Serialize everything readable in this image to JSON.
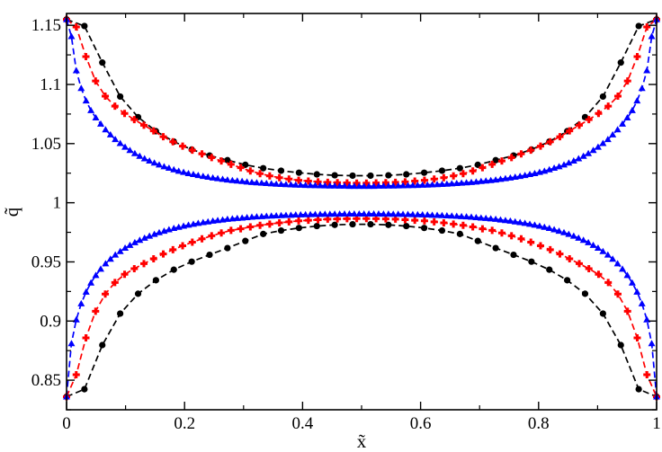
{
  "chart_data": {
    "type": "line",
    "xlabel": "x̃",
    "ylabel": "q̃",
    "xlim": [
      0,
      1
    ],
    "ylim": [
      0.825,
      1.16
    ],
    "grid": false,
    "legend": "none",
    "x_ticks": [
      "0",
      "0.2",
      "0.4",
      "0.6",
      "0.8",
      "1"
    ],
    "y_ticks": [
      "0.85",
      "0.9",
      "0.95",
      "1",
      "1.05",
      "1.1",
      "1.15"
    ],
    "series": [
      {
        "color": "#000000",
        "marker": "circle",
        "line_style": "dashed",
        "x": [
          0.0,
          0.0303,
          0.0606,
          0.0909,
          0.1212,
          0.1515,
          0.1818,
          0.2121,
          0.2424,
          0.2727,
          0.303,
          0.3333,
          0.3636,
          0.3939,
          0.4242,
          0.4545,
          0.4848,
          0.5152,
          0.5455,
          0.5758,
          0.6061,
          0.6364,
          0.6667,
          0.697,
          0.7273,
          0.7576,
          0.7879,
          0.8182,
          0.8485,
          0.8788,
          0.9091,
          0.9394,
          0.9697,
          1.0
        ],
        "upper": [
          1.155,
          1.1494,
          1.1185,
          1.0898,
          1.0724,
          1.0605,
          1.0517,
          1.045,
          1.0399,
          1.036,
          1.0321,
          1.0292,
          1.0271,
          1.0254,
          1.024,
          1.0232,
          1.0229,
          1.0229,
          1.0232,
          1.024,
          1.0254,
          1.0271,
          1.0292,
          1.0321,
          1.036,
          1.0399,
          1.045,
          1.0517,
          1.0605,
          1.0724,
          1.0898,
          1.1185,
          1.1494,
          1.155
        ],
        "lower": [
          0.836,
          0.8424,
          0.8797,
          0.9063,
          0.9231,
          0.9345,
          0.9434,
          0.9502,
          0.956,
          0.9617,
          0.9677,
          0.9736,
          0.9765,
          0.9787,
          0.9803,
          0.9813,
          0.9818,
          0.9818,
          0.9813,
          0.9803,
          0.9787,
          0.9765,
          0.9736,
          0.9677,
          0.9617,
          0.956,
          0.9502,
          0.9434,
          0.9345,
          0.9231,
          0.9063,
          0.8797,
          0.8424,
          0.836
        ]
      },
      {
        "color": "#ff0000",
        "marker": "plus",
        "line_style": "dashed",
        "x": [
          0.0,
          0.0164,
          0.0328,
          0.0492,
          0.0656,
          0.082,
          0.0984,
          0.1148,
          0.1311,
          0.1475,
          0.1639,
          0.1803,
          0.1967,
          0.2131,
          0.2295,
          0.2459,
          0.2623,
          0.2787,
          0.2951,
          0.3115,
          0.3279,
          0.3443,
          0.3607,
          0.377,
          0.3934,
          0.4098,
          0.4262,
          0.4426,
          0.459,
          0.4754,
          0.4918,
          0.5082,
          0.5246,
          0.541,
          0.5574,
          0.5738,
          0.5902,
          0.6066,
          0.623,
          0.6393,
          0.6557,
          0.6721,
          0.6885,
          0.7049,
          0.7213,
          0.7377,
          0.7541,
          0.7705,
          0.7869,
          0.8033,
          0.8197,
          0.8361,
          0.8525,
          0.8689,
          0.8852,
          0.9016,
          0.918,
          0.9344,
          0.9508,
          0.9672,
          0.9836,
          1.0
        ],
        "upper": [
          1.155,
          1.1486,
          1.1235,
          1.1029,
          1.0901,
          1.0817,
          1.0755,
          1.0703,
          1.0655,
          1.0608,
          1.0558,
          1.0516,
          1.0479,
          1.0444,
          1.0413,
          1.0382,
          1.0353,
          1.0325,
          1.0296,
          1.0269,
          1.0246,
          1.0227,
          1.0212,
          1.02,
          1.019,
          1.0183,
          1.0177,
          1.0173,
          1.017,
          1.0168,
          1.0166,
          1.0166,
          1.0168,
          1.017,
          1.0173,
          1.0177,
          1.0183,
          1.019,
          1.02,
          1.0212,
          1.0227,
          1.0246,
          1.0269,
          1.0296,
          1.0325,
          1.0353,
          1.0382,
          1.0413,
          1.0444,
          1.0479,
          1.0516,
          1.0558,
          1.0608,
          1.0655,
          1.0703,
          1.0755,
          1.0817,
          1.0901,
          1.1029,
          1.1235,
          1.1486,
          1.155
        ],
        "lower": [
          0.836,
          0.8546,
          0.8858,
          0.9083,
          0.9228,
          0.9326,
          0.9395,
          0.9443,
          0.9485,
          0.9526,
          0.9567,
          0.9603,
          0.9636,
          0.9667,
          0.9695,
          0.9721,
          0.9745,
          0.9766,
          0.978,
          0.9796,
          0.9809,
          0.982,
          0.983,
          0.9839,
          0.9847,
          0.9852,
          0.9857,
          0.9861,
          0.9863,
          0.9865,
          0.9866,
          0.9866,
          0.9865,
          0.9863,
          0.9861,
          0.9857,
          0.9852,
          0.9847,
          0.9839,
          0.983,
          0.982,
          0.9809,
          0.9796,
          0.978,
          0.9766,
          0.9745,
          0.9721,
          0.9695,
          0.9667,
          0.9636,
          0.9603,
          0.9567,
          0.9526,
          0.9485,
          0.9443,
          0.9395,
          0.9326,
          0.9228,
          0.9083,
          0.8858,
          0.8546,
          0.836
        ]
      },
      {
        "color": "#0000ff",
        "marker": "triangle",
        "line_style": "dashed",
        "x": [
          0.0,
          0.0083,
          0.0165,
          0.0248,
          0.0331,
          0.0413,
          0.0496,
          0.0579,
          0.0661,
          0.0744,
          0.0826,
          0.0909,
          0.0992,
          0.1074,
          0.1157,
          0.124,
          0.1322,
          0.1405,
          0.1488,
          0.157,
          0.1653,
          0.1736,
          0.1818,
          0.1901,
          0.1983,
          0.2066,
          0.2149,
          0.2231,
          0.2314,
          0.2397,
          0.2479,
          0.2562,
          0.2645,
          0.2727,
          0.281,
          0.2893,
          0.2975,
          0.3058,
          0.314,
          0.3223,
          0.3306,
          0.3388,
          0.3471,
          0.3554,
          0.3636,
          0.3719,
          0.3802,
          0.3884,
          0.3967,
          0.405,
          0.4132,
          0.4215,
          0.4298,
          0.438,
          0.4463,
          0.4545,
          0.4628,
          0.4711,
          0.4793,
          0.4876,
          0.4959,
          0.5041,
          0.5124,
          0.5207,
          0.5289,
          0.5372,
          0.5455,
          0.5537,
          0.562,
          0.5702,
          0.5785,
          0.5868,
          0.595,
          0.6033,
          0.6116,
          0.6198,
          0.6281,
          0.6364,
          0.6446,
          0.6529,
          0.6612,
          0.6694,
          0.6777,
          0.686,
          0.6942,
          0.7025,
          0.7107,
          0.719,
          0.7273,
          0.7355,
          0.7438,
          0.7521,
          0.7603,
          0.7686,
          0.7769,
          0.7851,
          0.7934,
          0.8017,
          0.8099,
          0.8182,
          0.8264,
          0.8347,
          0.843,
          0.8512,
          0.8595,
          0.8678,
          0.876,
          0.8843,
          0.8926,
          0.9008,
          0.9091,
          0.9174,
          0.9256,
          0.9339,
          0.9421,
          0.9504,
          0.9587,
          0.9669,
          0.9752,
          0.9835,
          0.9917,
          1.0
        ],
        "upper": [
          1.155,
          1.1406,
          1.1118,
          1.0968,
          1.0862,
          1.0781,
          1.0719,
          1.0667,
          1.0618,
          1.0575,
          1.0536,
          1.0502,
          1.0471,
          1.0443,
          1.0417,
          1.0394,
          1.0373,
          1.0354,
          1.0337,
          1.0321,
          1.0306,
          1.0293,
          1.028,
          1.0268,
          1.0258,
          1.0248,
          1.024,
          1.0232,
          1.0224,
          1.0217,
          1.0211,
          1.0205,
          1.0199,
          1.0194,
          1.0189,
          1.0185,
          1.0181,
          1.0177,
          1.0173,
          1.017,
          1.0167,
          1.0164,
          1.0161,
          1.0159,
          1.0157,
          1.0155,
          1.0153,
          1.0151,
          1.015,
          1.0148,
          1.0147,
          1.0146,
          1.0145,
          1.0144,
          1.0143,
          1.0143,
          1.0142,
          1.0142,
          1.0141,
          1.0141,
          1.0141,
          1.0141,
          1.0141,
          1.0141,
          1.0142,
          1.0142,
          1.0143,
          1.0143,
          1.0144,
          1.0145,
          1.0146,
          1.0147,
          1.0148,
          1.015,
          1.0151,
          1.0153,
          1.0155,
          1.0157,
          1.0159,
          1.0161,
          1.0164,
          1.0167,
          1.017,
          1.0173,
          1.0177,
          1.0181,
          1.0185,
          1.0189,
          1.0194,
          1.0199,
          1.0205,
          1.0211,
          1.0217,
          1.0224,
          1.0232,
          1.024,
          1.0248,
          1.0258,
          1.0268,
          1.028,
          1.0293,
          1.0306,
          1.0321,
          1.0337,
          1.0354,
          1.0373,
          1.0394,
          1.0417,
          1.0443,
          1.0471,
          1.0502,
          1.0536,
          1.0575,
          1.0618,
          1.0667,
          1.0719,
          1.0781,
          1.0862,
          1.0968,
          1.1118,
          1.1406,
          1.155
        ],
        "lower": [
          0.836,
          0.881,
          0.9012,
          0.9147,
          0.9246,
          0.9323,
          0.9387,
          0.944,
          0.9485,
          0.9524,
          0.9559,
          0.9589,
          0.9617,
          0.9641,
          0.9664,
          0.9684,
          0.9702,
          0.9719,
          0.9734,
          0.9748,
          0.9761,
          0.9773,
          0.9784,
          0.9794,
          0.9803,
          0.9812,
          0.982,
          0.9827,
          0.9834,
          0.984,
          0.9846,
          0.9851,
          0.9856,
          0.9861,
          0.9865,
          0.9869,
          0.9872,
          0.9876,
          0.9879,
          0.9882,
          0.9884,
          0.9887,
          0.9889,
          0.9891,
          0.9893,
          0.9895,
          0.9896,
          0.9898,
          0.9899,
          0.99,
          0.9901,
          0.9902,
          0.9903,
          0.9904,
          0.9904,
          0.9905,
          0.9905,
          0.9906,
          0.9906,
          0.9906,
          0.9906,
          0.9906,
          0.9906,
          0.9906,
          0.9906,
          0.9905,
          0.9905,
          0.9904,
          0.9904,
          0.9903,
          0.9902,
          0.9901,
          0.99,
          0.9899,
          0.9898,
          0.9896,
          0.9895,
          0.9893,
          0.9891,
          0.9889,
          0.9887,
          0.9884,
          0.9882,
          0.9879,
          0.9876,
          0.9872,
          0.9869,
          0.9865,
          0.9861,
          0.9856,
          0.9851,
          0.9846,
          0.984,
          0.9834,
          0.9827,
          0.982,
          0.9812,
          0.9803,
          0.9794,
          0.9784,
          0.9773,
          0.9761,
          0.9748,
          0.9734,
          0.9719,
          0.9702,
          0.9684,
          0.9664,
          0.9641,
          0.9617,
          0.9589,
          0.9559,
          0.9524,
          0.9485,
          0.944,
          0.9387,
          0.9323,
          0.9246,
          0.9147,
          0.9012,
          0.881,
          0.836
        ]
      }
    ]
  }
}
